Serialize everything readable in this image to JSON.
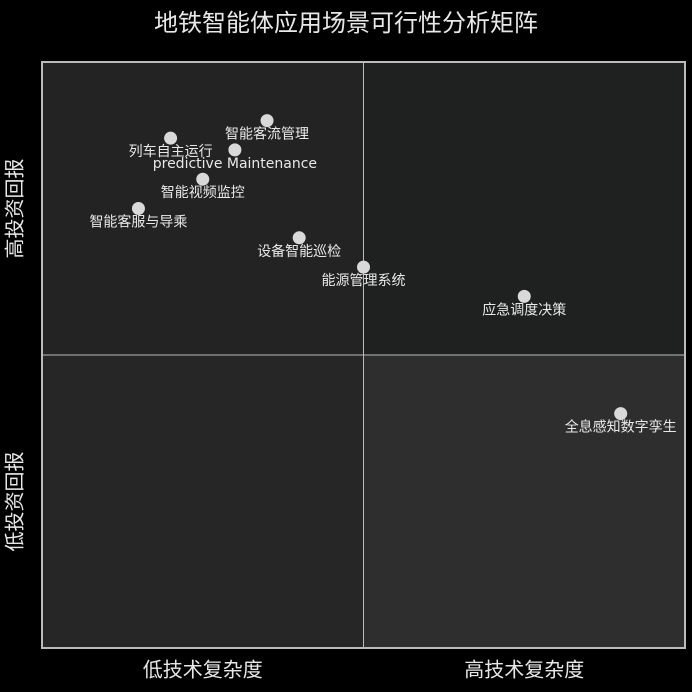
{
  "chart_data": {
    "type": "quadrant",
    "title": "地铁智能体应用场景可行性分析矩阵",
    "x_axis_labels": [
      "低技术复杂度",
      "高技术复杂度"
    ],
    "y_axis_labels": [
      "低投资回报",
      "高投资回报"
    ],
    "xlim": [
      0,
      1
    ],
    "ylim": [
      0,
      1
    ],
    "quadrant_colors": [
      "#1f2120",
      "#232323",
      "#262626",
      "#2e2e2e"
    ],
    "point_color": "#d9d9d9",
    "points": [
      {
        "name": "智能客流管理",
        "x": 0.35,
        "y": 0.9
      },
      {
        "name": "列车自主运行",
        "x": 0.2,
        "y": 0.87
      },
      {
        "name": "predictive Maintenance",
        "x": 0.3,
        "y": 0.85
      },
      {
        "name": "智能视频监控",
        "x": 0.25,
        "y": 0.8
      },
      {
        "name": "智能客服与导乘",
        "x": 0.15,
        "y": 0.75
      },
      {
        "name": "设备智能巡检",
        "x": 0.4,
        "y": 0.7
      },
      {
        "name": "能源管理系统",
        "x": 0.5,
        "y": 0.65
      },
      {
        "name": "应急调度决策",
        "x": 0.75,
        "y": 0.6
      },
      {
        "name": "全息感知数字孪生",
        "x": 0.9,
        "y": 0.4
      }
    ]
  }
}
